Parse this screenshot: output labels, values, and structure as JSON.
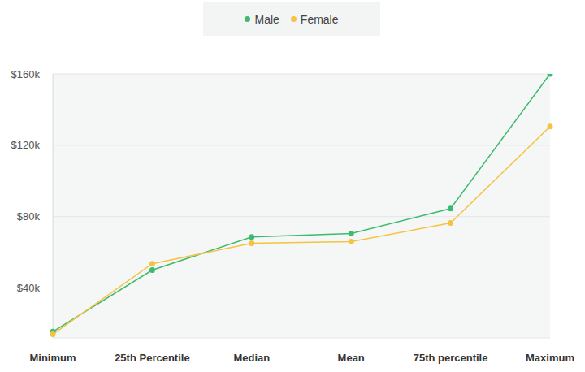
{
  "chart_data": {
    "type": "line",
    "categories": [
      "Minimum",
      "25th Percentile",
      "Median",
      "Mean",
      "75th percentile",
      "Maximum"
    ],
    "series": [
      {
        "name": "Male",
        "color": "#3dba6f",
        "values": [
          15500,
          50000,
          68600,
          70500,
          84500,
          160000
        ]
      },
      {
        "name": "Female",
        "color": "#f5c343",
        "values": [
          14000,
          53600,
          65000,
          66000,
          76400,
          130500
        ]
      }
    ],
    "ylim": [
      12000,
      160000
    ],
    "yticks": [
      {
        "value": 40000,
        "label": "$40k"
      },
      {
        "value": 80000,
        "label": "$80k"
      },
      {
        "value": 120000,
        "label": "$120k"
      },
      {
        "value": 160000,
        "label": "$160k"
      }
    ],
    "grid": true,
    "legend": "top",
    "marker": "circle"
  }
}
